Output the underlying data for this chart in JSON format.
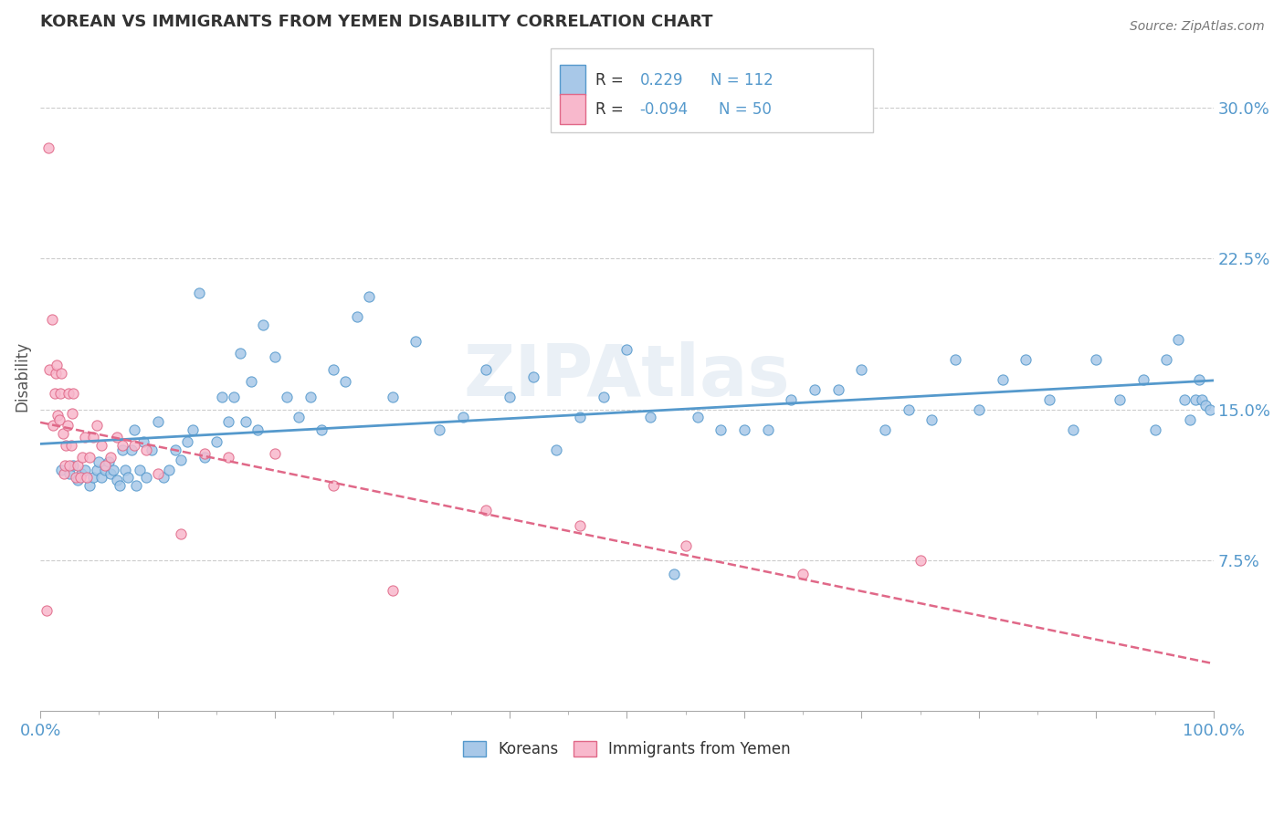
{
  "title": "KOREAN VS IMMIGRANTS FROM YEMEN DISABILITY CORRELATION CHART",
  "source": "Source: ZipAtlas.com",
  "ylabel": "Disability",
  "xmin": 0.0,
  "xmax": 1.0,
  "ymin": 0.0,
  "ymax": 0.333,
  "yticks": [
    0.075,
    0.15,
    0.225,
    0.3
  ],
  "ytick_labels": [
    "7.5%",
    "15.0%",
    "22.5%",
    "30.0%"
  ],
  "color_korean": "#a8c8e8",
  "color_korean_line": "#5599cc",
  "color_yemen": "#f8b8cc",
  "color_yemen_line": "#e06888",
  "background_color": "#ffffff",
  "grid_color": "#cccccc",
  "text_color": "#5599cc",
  "korean_x": [
    0.018,
    0.025,
    0.028,
    0.032,
    0.035,
    0.038,
    0.042,
    0.045,
    0.048,
    0.05,
    0.052,
    0.055,
    0.058,
    0.06,
    0.062,
    0.065,
    0.068,
    0.07,
    0.072,
    0.075,
    0.078,
    0.08,
    0.082,
    0.085,
    0.088,
    0.09,
    0.095,
    0.1,
    0.105,
    0.11,
    0.115,
    0.12,
    0.125,
    0.13,
    0.135,
    0.14,
    0.15,
    0.155,
    0.16,
    0.165,
    0.17,
    0.175,
    0.18,
    0.185,
    0.19,
    0.2,
    0.21,
    0.22,
    0.23,
    0.24,
    0.25,
    0.26,
    0.27,
    0.28,
    0.3,
    0.32,
    0.34,
    0.36,
    0.38,
    0.4,
    0.42,
    0.44,
    0.46,
    0.48,
    0.5,
    0.52,
    0.54,
    0.56,
    0.58,
    0.6,
    0.62,
    0.64,
    0.66,
    0.68,
    0.7,
    0.72,
    0.74,
    0.76,
    0.78,
    0.8,
    0.82,
    0.84,
    0.86,
    0.88,
    0.9,
    0.92,
    0.94,
    0.95,
    0.96,
    0.97,
    0.975,
    0.98,
    0.985,
    0.988,
    0.99,
    0.993,
    0.997
  ],
  "korean_y": [
    0.12,
    0.118,
    0.122,
    0.115,
    0.118,
    0.12,
    0.112,
    0.116,
    0.12,
    0.124,
    0.116,
    0.12,
    0.124,
    0.118,
    0.12,
    0.115,
    0.112,
    0.13,
    0.12,
    0.116,
    0.13,
    0.14,
    0.112,
    0.12,
    0.134,
    0.116,
    0.13,
    0.144,
    0.116,
    0.12,
    0.13,
    0.125,
    0.134,
    0.14,
    0.208,
    0.126,
    0.134,
    0.156,
    0.144,
    0.156,
    0.178,
    0.144,
    0.164,
    0.14,
    0.192,
    0.176,
    0.156,
    0.146,
    0.156,
    0.14,
    0.17,
    0.164,
    0.196,
    0.206,
    0.156,
    0.184,
    0.14,
    0.146,
    0.17,
    0.156,
    0.166,
    0.13,
    0.146,
    0.156,
    0.18,
    0.146,
    0.068,
    0.146,
    0.14,
    0.14,
    0.14,
    0.155,
    0.16,
    0.16,
    0.17,
    0.14,
    0.15,
    0.145,
    0.175,
    0.15,
    0.165,
    0.175,
    0.155,
    0.14,
    0.175,
    0.155,
    0.165,
    0.14,
    0.175,
    0.185,
    0.155,
    0.145,
    0.155,
    0.165,
    0.155,
    0.152,
    0.15
  ],
  "yemen_x": [
    0.005,
    0.007,
    0.008,
    0.01,
    0.011,
    0.012,
    0.013,
    0.014,
    0.015,
    0.016,
    0.017,
    0.018,
    0.019,
    0.02,
    0.021,
    0.022,
    0.023,
    0.024,
    0.025,
    0.026,
    0.027,
    0.028,
    0.03,
    0.032,
    0.034,
    0.036,
    0.038,
    0.04,
    0.042,
    0.045,
    0.048,
    0.052,
    0.055,
    0.06,
    0.065,
    0.07,
    0.08,
    0.09,
    0.1,
    0.12,
    0.14,
    0.16,
    0.2,
    0.25,
    0.3,
    0.38,
    0.46,
    0.55,
    0.65,
    0.75
  ],
  "yemen_y": [
    0.05,
    0.28,
    0.17,
    0.195,
    0.142,
    0.158,
    0.168,
    0.172,
    0.147,
    0.145,
    0.158,
    0.168,
    0.138,
    0.118,
    0.122,
    0.132,
    0.142,
    0.158,
    0.122,
    0.132,
    0.148,
    0.158,
    0.116,
    0.122,
    0.116,
    0.126,
    0.136,
    0.116,
    0.126,
    0.136,
    0.142,
    0.132,
    0.122,
    0.126,
    0.136,
    0.132,
    0.132,
    0.13,
    0.118,
    0.088,
    0.128,
    0.126,
    0.128,
    0.112,
    0.06,
    0.1,
    0.092,
    0.082,
    0.068,
    0.075
  ]
}
